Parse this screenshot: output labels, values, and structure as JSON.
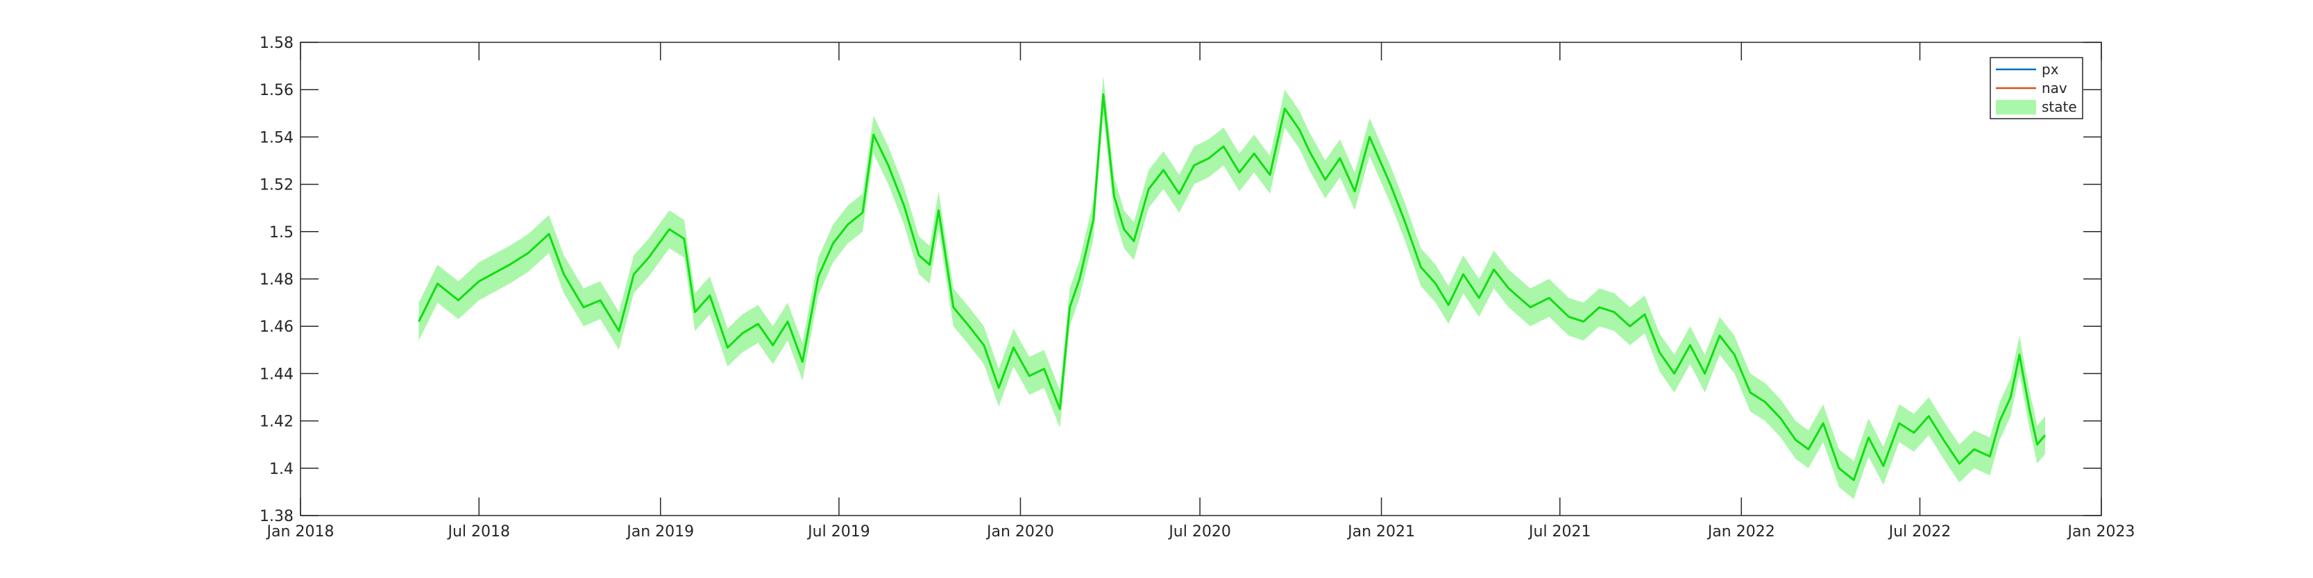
{
  "chart_data": {
    "type": "line",
    "title": "",
    "xlabel": "",
    "ylabel": "",
    "x_range": [
      "2018-01-01",
      "2023-01-01"
    ],
    "ylim": [
      1.38,
      1.58
    ],
    "y_ticks": [
      1.38,
      1.4,
      1.42,
      1.44,
      1.46,
      1.48,
      1.5,
      1.52,
      1.54,
      1.56,
      1.58
    ],
    "y_tick_labels": [
      "1.38",
      "1.4",
      "1.42",
      "1.44",
      "1.46",
      "1.48",
      "1.5",
      "1.52",
      "1.54",
      "1.56",
      "1.58"
    ],
    "x_ticks": [
      "2018-01-01",
      "2018-07-01",
      "2019-01-01",
      "2019-07-01",
      "2020-01-01",
      "2020-07-01",
      "2021-01-01",
      "2021-07-01",
      "2022-01-01",
      "2022-07-01",
      "2023-01-01"
    ],
    "x_tick_labels": [
      "Jan 2018",
      "Jul 2018",
      "Jan 2019",
      "Jul 2019",
      "Jan 2020",
      "Jul 2020",
      "Jan 2021",
      "Jul 2021",
      "Jan 2022",
      "Jul 2022",
      "Jan 2023"
    ],
    "grid": false,
    "legend_position": "top-right",
    "legend": [
      {
        "label": "px",
        "color": "#0072BD",
        "kind": "line"
      },
      {
        "label": "nav",
        "color": "#D95319",
        "kind": "line"
      },
      {
        "label": "state",
        "color": "#AAF7AA",
        "kind": "band"
      }
    ],
    "state_band_halfwidth": 0.008,
    "series": [
      {
        "name": "state",
        "color": "#11DD11",
        "band_color": "#AAF7AA",
        "x": [
          "2018-05-01",
          "2018-05-20",
          "2018-06-10",
          "2018-07-01",
          "2018-08-01",
          "2018-08-20",
          "2018-09-10",
          "2018-09-25",
          "2018-10-15",
          "2018-11-01",
          "2018-11-20",
          "2018-12-05",
          "2018-12-20",
          "2019-01-10",
          "2019-01-25",
          "2019-02-05",
          "2019-02-20",
          "2019-03-10",
          "2019-03-25",
          "2019-04-10",
          "2019-04-25",
          "2019-05-10",
          "2019-05-25",
          "2019-06-10",
          "2019-06-25",
          "2019-07-10",
          "2019-07-25",
          "2019-08-05",
          "2019-08-20",
          "2019-09-05",
          "2019-09-20",
          "2019-10-01",
          "2019-10-10",
          "2019-10-25",
          "2019-11-10",
          "2019-11-25",
          "2019-12-10",
          "2019-12-25",
          "2020-01-10",
          "2020-01-25",
          "2020-02-10",
          "2020-02-20",
          "2020-03-01",
          "2020-03-15",
          "2020-03-25",
          "2020-04-05",
          "2020-04-15",
          "2020-04-25",
          "2020-05-10",
          "2020-05-25",
          "2020-06-10",
          "2020-06-25",
          "2020-07-10",
          "2020-07-25",
          "2020-08-10",
          "2020-08-25",
          "2020-09-10",
          "2020-09-25",
          "2020-10-10",
          "2020-10-20",
          "2020-11-05",
          "2020-11-20",
          "2020-12-05",
          "2020-12-20",
          "2021-01-10",
          "2021-01-25",
          "2021-02-10",
          "2021-02-25",
          "2021-03-10",
          "2021-03-25",
          "2021-04-10",
          "2021-04-25",
          "2021-05-10",
          "2021-06-01",
          "2021-06-20",
          "2021-07-10",
          "2021-07-25",
          "2021-08-10",
          "2021-08-25",
          "2021-09-10",
          "2021-09-25",
          "2021-10-10",
          "2021-10-25",
          "2021-11-10",
          "2021-11-25",
          "2021-12-10",
          "2021-12-25",
          "2022-01-10",
          "2022-01-25",
          "2022-02-10",
          "2022-02-25",
          "2022-03-10",
          "2022-03-25",
          "2022-04-10",
          "2022-04-25",
          "2022-05-10",
          "2022-05-25",
          "2022-06-10",
          "2022-06-25",
          "2022-07-10",
          "2022-07-25",
          "2022-08-10",
          "2022-08-25",
          "2022-09-10",
          "2022-09-20",
          "2022-10-01",
          "2022-10-10",
          "2022-10-20",
          "2022-10-28",
          "2022-11-05"
        ],
        "y": [
          1.462,
          1.478,
          1.471,
          1.479,
          1.486,
          1.491,
          1.499,
          1.482,
          1.468,
          1.471,
          1.458,
          1.482,
          1.489,
          1.501,
          1.497,
          1.466,
          1.473,
          1.451,
          1.457,
          1.461,
          1.452,
          1.462,
          1.445,
          1.481,
          1.495,
          1.503,
          1.508,
          1.541,
          1.528,
          1.511,
          1.49,
          1.486,
          1.509,
          1.468,
          1.46,
          1.452,
          1.434,
          1.451,
          1.439,
          1.442,
          1.425,
          1.468,
          1.48,
          1.505,
          1.558,
          1.515,
          1.501,
          1.496,
          1.518,
          1.526,
          1.516,
          1.528,
          1.531,
          1.536,
          1.525,
          1.533,
          1.524,
          1.552,
          1.543,
          1.534,
          1.522,
          1.531,
          1.517,
          1.54,
          1.52,
          1.504,
          1.485,
          1.478,
          1.469,
          1.482,
          1.472,
          1.484,
          1.476,
          1.468,
          1.472,
          1.464,
          1.462,
          1.468,
          1.466,
          1.46,
          1.465,
          1.449,
          1.44,
          1.452,
          1.44,
          1.456,
          1.448,
          1.432,
          1.428,
          1.421,
          1.412,
          1.408,
          1.419,
          1.4,
          1.395,
          1.413,
          1.401,
          1.419,
          1.415,
          1.422,
          1.412,
          1.402,
          1.408,
          1.405,
          1.42,
          1.43,
          1.448,
          1.425,
          1.41,
          1.414
        ]
      }
    ]
  }
}
